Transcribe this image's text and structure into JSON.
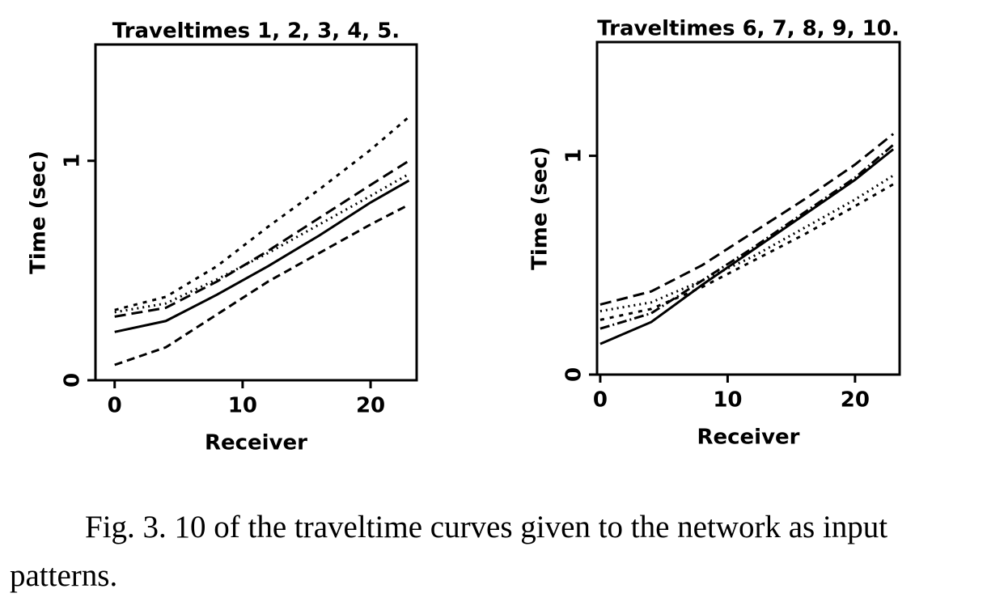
{
  "chart_data": [
    {
      "type": "line",
      "title": "Traveltimes 1, 2, 3, 4, 5.",
      "xlabel": "Receiver",
      "ylabel": "Time (sec)",
      "xlim": [
        -1.5,
        23.6
      ],
      "ylim": [
        0,
        1.53
      ],
      "xticks": [
        0,
        10,
        20
      ],
      "yticks": [
        0,
        1
      ],
      "x": [
        0,
        4,
        8,
        12,
        16,
        20,
        23
      ],
      "series": [
        {
          "color": "#000000",
          "dash": "5,7",
          "values": [
            0.32,
            0.38,
            0.52,
            0.7,
            0.87,
            1.05,
            1.2
          ]
        },
        {
          "color": "#000000",
          "dash": "14,7",
          "values": [
            0.29,
            0.33,
            0.45,
            0.59,
            0.74,
            0.89,
            1.0
          ]
        },
        {
          "color": "#000000",
          "dash": "2,5",
          "values": [
            0.31,
            0.35,
            0.46,
            0.58,
            0.71,
            0.84,
            0.94
          ]
        },
        {
          "color": "#000000",
          "dash": "none",
          "values": [
            0.22,
            0.27,
            0.39,
            0.52,
            0.66,
            0.81,
            0.91
          ]
        },
        {
          "color": "#000000",
          "dash": "10,6",
          "values": [
            0.07,
            0.15,
            0.3,
            0.45,
            0.58,
            0.71,
            0.8
          ]
        }
      ]
    },
    {
      "type": "line",
      "title": "Traveltimes 6, 7, 8, 9, 10.",
      "xlabel": "Receiver",
      "ylabel": "Time (sec)",
      "xlim": [
        -0.25,
        23.5
      ],
      "ylim": [
        0,
        1.52
      ],
      "xticks": [
        0,
        10,
        20
      ],
      "yticks": [
        0,
        1
      ],
      "x": [
        0,
        4,
        8,
        12,
        16,
        20,
        23
      ],
      "series": [
        {
          "color": "#000000",
          "dash": "14,7",
          "values": [
            0.32,
            0.38,
            0.5,
            0.65,
            0.8,
            0.96,
            1.1
          ]
        },
        {
          "color": "#000000",
          "dash": "2,5",
          "values": [
            0.29,
            0.33,
            0.43,
            0.54,
            0.67,
            0.8,
            0.91
          ]
        },
        {
          "color": "#000000",
          "dash": "5,7",
          "values": [
            0.25,
            0.3,
            0.4,
            0.52,
            0.64,
            0.77,
            0.87
          ]
        },
        {
          "color": "#000000",
          "dash": "12,4,2,4",
          "values": [
            0.21,
            0.28,
            0.43,
            0.58,
            0.74,
            0.9,
            1.05
          ]
        },
        {
          "color": "#000000",
          "dash": "none",
          "values": [
            0.14,
            0.24,
            0.41,
            0.57,
            0.73,
            0.89,
            1.03
          ]
        }
      ]
    }
  ],
  "caption": "Fig. 3. 10 of the traveltime curves given to the network as input patterns."
}
